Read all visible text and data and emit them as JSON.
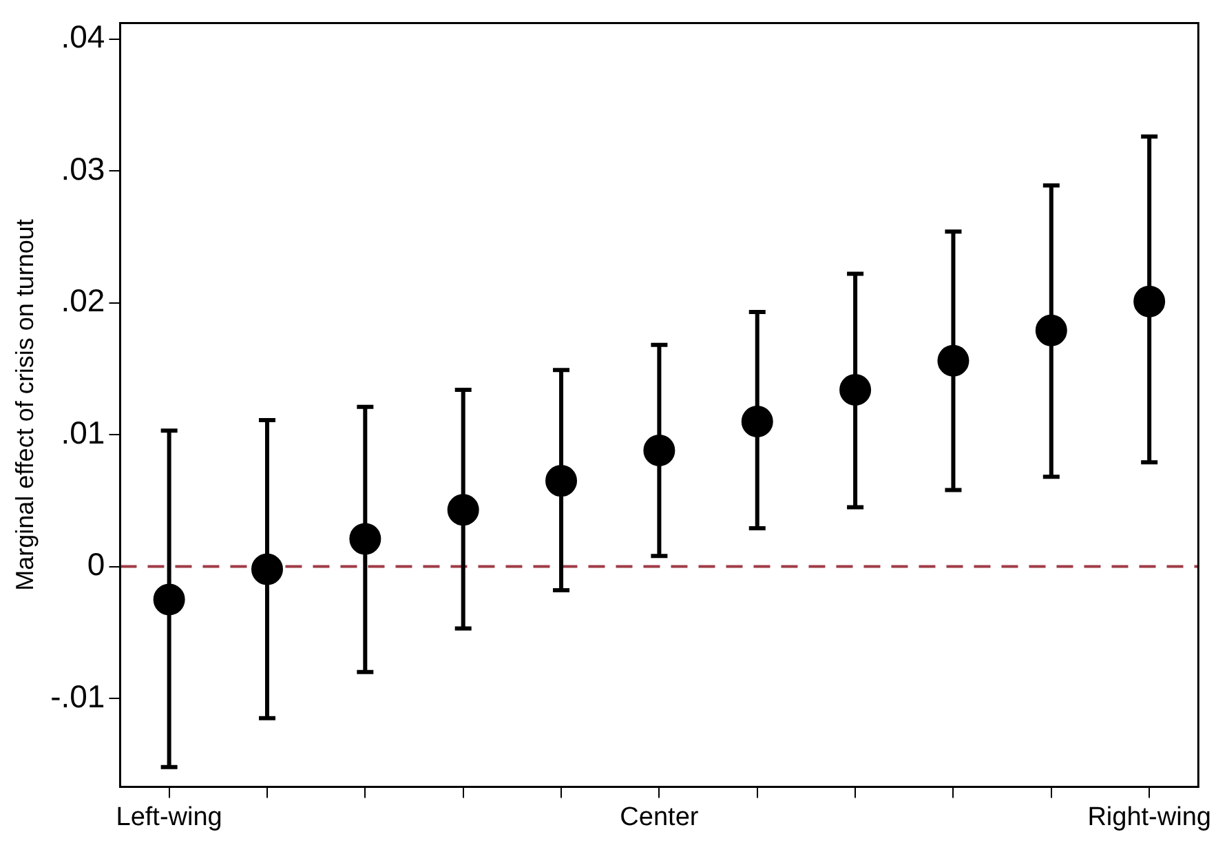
{
  "chart_data": {
    "type": "scatter",
    "ylabel": "Marginal effect of crisis on turnout",
    "categories": [
      "Left-wing",
      null,
      null,
      null,
      null,
      "Center",
      null,
      null,
      null,
      null,
      "Right-wing"
    ],
    "values": [
      -0.0025,
      -0.0002,
      0.0021,
      0.0043,
      0.0065,
      0.0088,
      0.011,
      0.0134,
      0.0156,
      0.0179,
      0.0201
    ],
    "errors": [
      [
        -0.0152,
        0.0103
      ],
      [
        -0.0115,
        0.0111
      ],
      [
        -0.008,
        0.0121
      ],
      [
        -0.0047,
        0.0134
      ],
      [
        -0.0018,
        0.0149
      ],
      [
        0.0008,
        0.0168
      ],
      [
        0.0029,
        0.0193
      ],
      [
        0.0045,
        0.0222
      ],
      [
        0.0058,
        0.0254
      ],
      [
        0.0068,
        0.0289
      ],
      [
        0.0079,
        0.0326
      ]
    ],
    "color": "#000000",
    "marker": "circle",
    "ylim": [
      -0.0167,
      0.0412
    ],
    "yticks": [
      {
        "value": -0.01,
        "label": "-.01"
      },
      {
        "value": 0,
        "label": "0"
      },
      {
        "value": 0.01,
        "label": ".01"
      },
      {
        "value": 0.02,
        "label": ".02"
      },
      {
        "value": 0.03,
        "label": ".03"
      },
      {
        "value": 0.04,
        "label": ".04"
      }
    ],
    "ref_lines": [
      {
        "axis": "y",
        "value": 0,
        "label": null,
        "color": "#a03c46",
        "line_style": "dashed"
      }
    ],
    "grid": false,
    "legend": false
  }
}
